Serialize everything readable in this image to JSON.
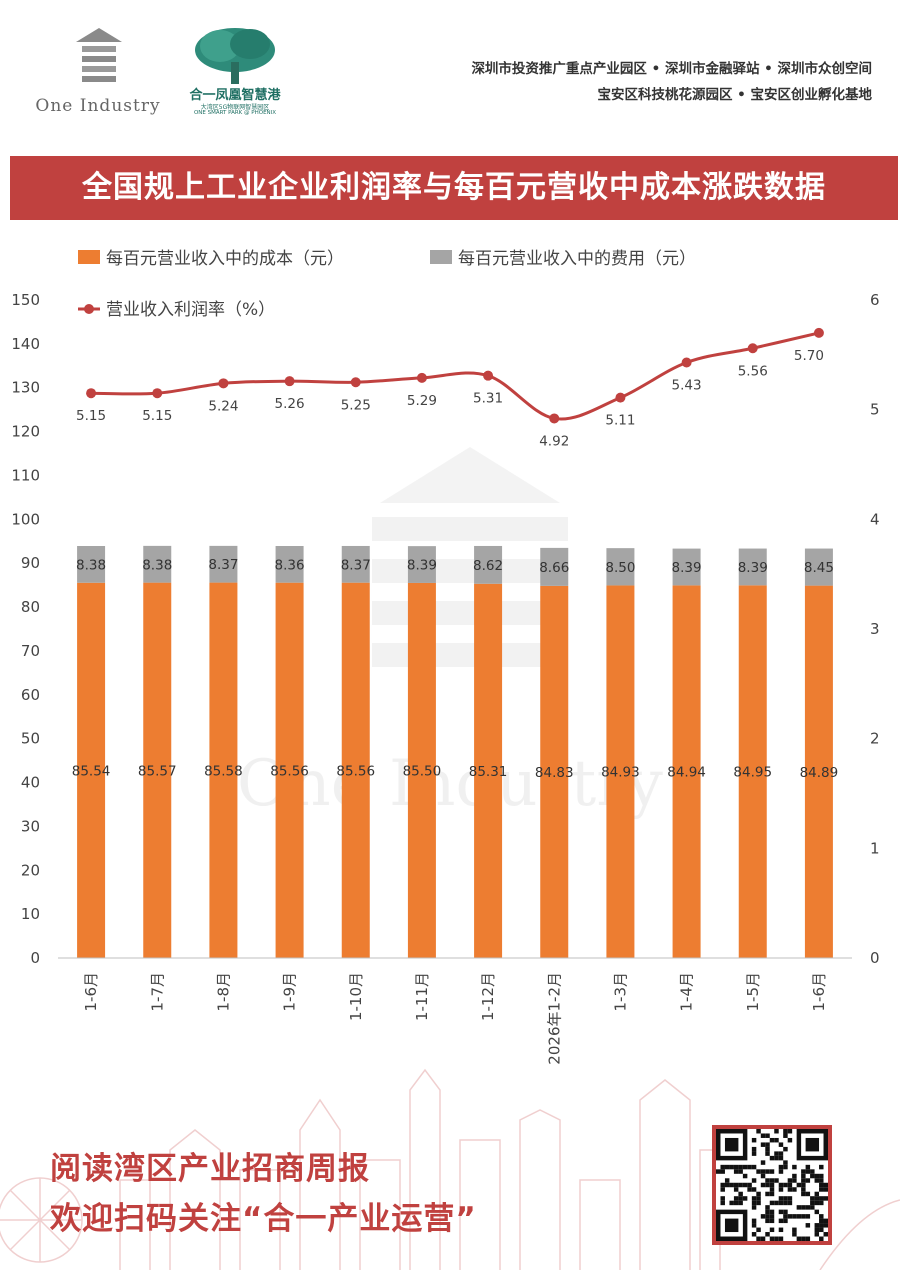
{
  "header": {
    "logo_one_text": "One Industry",
    "logo_park_name": "合一凤凰智慧港",
    "logo_park_sub": "大湾区5G物联网智慧园区",
    "logo_park_en": "ONE SMART PARK @ PHOENIX",
    "tags_line1": "深圳市投资推广重点产业园区 • 深圳市金融驿站 • 深圳市众创空间",
    "tags_line2": "宝安区科技桃花源园区 • 宝安区创业孵化基地"
  },
  "banner_title": "全国规上工业企业利润率与每百元营收中成本涨跌数据",
  "footer": {
    "line1": "阅读湾区产业招商周报",
    "line2": "欢迎扫码关注“合一产业运营”"
  },
  "colors": {
    "brand_red": "#c0413f",
    "cost": "#ed7d31",
    "expense": "#a5a5a5",
    "line": "#c0413f"
  },
  "chart_data": {
    "type": "bar",
    "stacked": true,
    "categories": [
      "1-6月",
      "1-7月",
      "1-8月",
      "1-9月",
      "1-10月",
      "1-11月",
      "1-12月",
      "2026年1-2月",
      "1-3月",
      "1-4月",
      "1-5月",
      "1-6月"
    ],
    "series": [
      {
        "name": "每百元营业收入中的成本（元）",
        "type": "bar",
        "axis": "left",
        "color": "#ed7d31",
        "values": [
          85.54,
          85.57,
          85.58,
          85.56,
          85.56,
          85.5,
          85.31,
          84.83,
          84.93,
          84.94,
          84.95,
          84.89
        ]
      },
      {
        "name": "每百元营业收入中的费用（元）",
        "type": "bar",
        "axis": "left",
        "color": "#a5a5a5",
        "values": [
          8.38,
          8.38,
          8.37,
          8.36,
          8.37,
          8.39,
          8.62,
          8.66,
          8.5,
          8.39,
          8.39,
          8.45
        ]
      },
      {
        "name": "营业收入利润率（%）",
        "type": "line",
        "axis": "right",
        "color": "#c0413f",
        "values": [
          5.15,
          5.15,
          5.24,
          5.26,
          5.25,
          5.29,
          5.31,
          4.92,
          5.11,
          5.43,
          5.56,
          5.7
        ]
      }
    ],
    "y_left": {
      "min": 0,
      "max": 150,
      "step": 10
    },
    "y_right": {
      "min": 0,
      "max": 6,
      "step": 1
    },
    "legend": "top",
    "grid": false
  }
}
